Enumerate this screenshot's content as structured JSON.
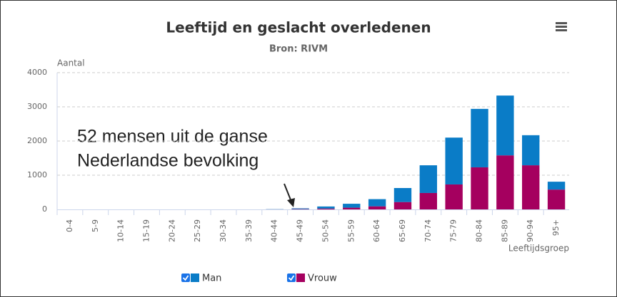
{
  "chart_data": {
    "type": "stacked-bar",
    "title": "Leeftijd en geslacht overledenen",
    "subtitle": "Bron: RIVM",
    "y_label": "Aantal",
    "x_label": "Leeftijdsgroep",
    "annotation": [
      "52 mensen uit de ganse",
      "Nederlandse bevolking"
    ],
    "categories": [
      "0-4",
      "5-9",
      "10-14",
      "15-19",
      "20-24",
      "25-29",
      "30-34",
      "35-39",
      "40-44",
      "45-49",
      "50-54",
      "55-59",
      "60-64",
      "65-69",
      "70-74",
      "75-79",
      "80-84",
      "85-89",
      "90-94",
      "95+"
    ],
    "series": [
      {
        "name": "Vrouw",
        "color": "#a5005f",
        "values": [
          0,
          0,
          0,
          0,
          0,
          0,
          0,
          0,
          2,
          10,
          25,
          50,
          90,
          215,
          480,
          730,
          1230,
          1580,
          1290,
          580
        ]
      },
      {
        "name": "Man",
        "color": "#0a7cc7",
        "values": [
          0,
          0,
          0,
          0,
          0,
          0,
          0,
          0,
          5,
          20,
          60,
          115,
          210,
          410,
          810,
          1370,
          1710,
          1750,
          880,
          230
        ]
      }
    ],
    "legend_order": [
      1,
      0
    ],
    "ylim": [
      0,
      4000
    ],
    "yticks": [
      0,
      1000,
      2000,
      3000,
      4000
    ],
    "grid": true
  }
}
